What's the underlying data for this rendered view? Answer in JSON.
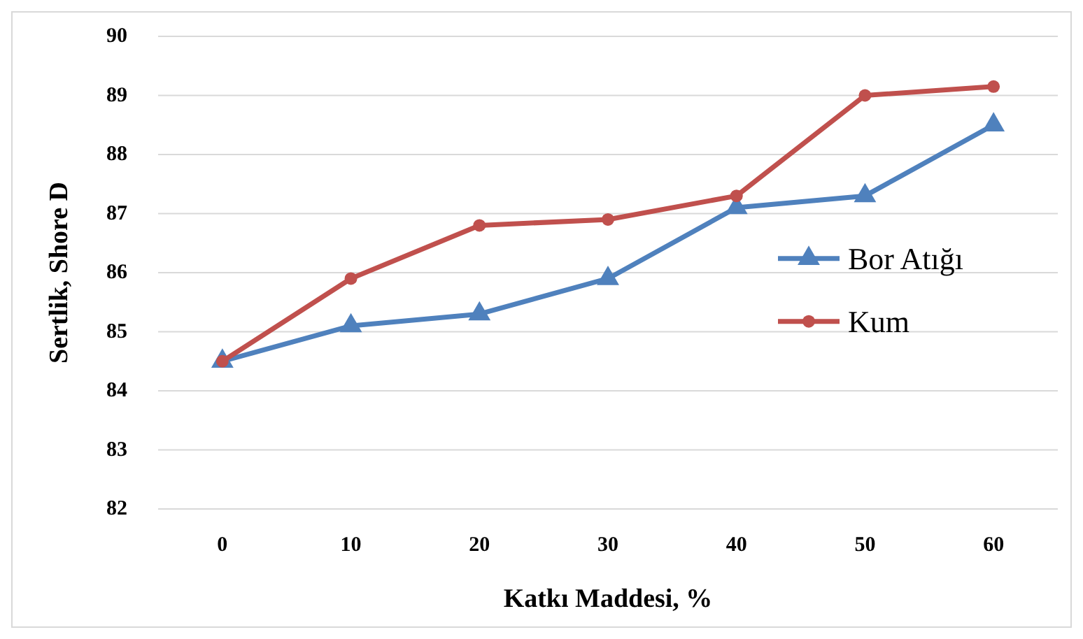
{
  "chart_data": {
    "type": "line",
    "xlabel": "Katkı Maddesi, %",
    "ylabel": "Sertlik, Shore D",
    "categories": [
      "0",
      "10",
      "20",
      "30",
      "40",
      "50",
      "60"
    ],
    "series": [
      {
        "name": "Bor Atığı",
        "color": "#4f81bd",
        "values": [
          84.5,
          85.1,
          85.3,
          85.9,
          87.1,
          87.3,
          88.5
        ],
        "marker": "triangle"
      },
      {
        "name": "Kum",
        "color": "#c0504d",
        "values": [
          84.5,
          85.9,
          86.8,
          86.9,
          87.3,
          89.0,
          89.15
        ],
        "marker": "circle"
      }
    ],
    "ylim": [
      82,
      90
    ],
    "yticks": [
      82,
      83,
      84,
      85,
      86,
      87,
      88,
      89,
      90
    ],
    "grid": "y",
    "legend": "right",
    "line_style": "solid"
  }
}
